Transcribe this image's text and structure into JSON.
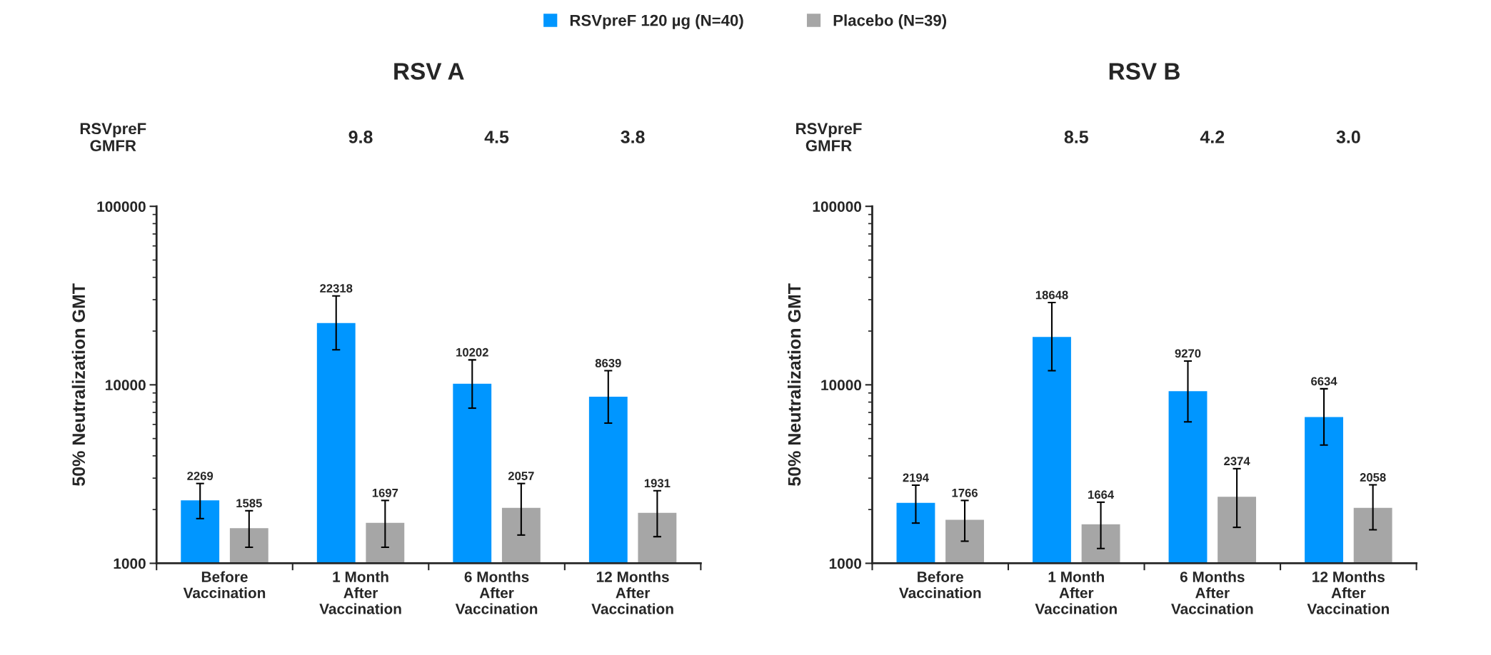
{
  "chart_data": [
    {
      "type": "bar",
      "title": "RSV A",
      "ylabel": "50% Neutralization GMT",
      "log": true,
      "ylim": [
        1000,
        100000
      ],
      "yticks": [
        1000,
        10000,
        100000
      ],
      "grid": false,
      "legend": "top",
      "data_labels": true,
      "categories": [
        "Before\nVaccination",
        "1 Month\nAfter\nVaccination",
        "6 Months\nAfter\nVaccination",
        "12 Months\nAfter\nVaccination"
      ],
      "series": [
        {
          "name": "RSVpreF 120 µg (N=40)",
          "color": "#0096ff",
          "values": [
            2269,
            22318,
            10202,
            8639
          ],
          "errors": [
            [
              1780,
              2800
            ],
            [
              15700,
              31500
            ],
            [
              7400,
              13800
            ],
            [
              6100,
              12000
            ]
          ]
        },
        {
          "name": "Placebo (N=39)",
          "color": "#a6a6a6",
          "values": [
            1585,
            1697,
            2057,
            1931
          ],
          "errors": [
            [
              1230,
              1970
            ],
            [
              1230,
              2250
            ],
            [
              1440,
              2800
            ],
            [
              1410,
              2550
            ]
          ]
        }
      ],
      "annotations": [
        "RSVpreF\nGMFR",
        "9.8",
        "4.5",
        "3.8"
      ]
    },
    {
      "type": "bar",
      "title": "RSV B",
      "ylabel": "50% Neutralization GMT",
      "log": true,
      "ylim": [
        1000,
        100000
      ],
      "yticks": [
        1000,
        10000,
        100000
      ],
      "grid": false,
      "data_labels": true,
      "categories": [
        "Before\nVaccination",
        "1 Month\nAfter\nVaccination",
        "6 Months\nAfter\nVaccination",
        "12 Months\nAfter\nVaccination"
      ],
      "series": [
        {
          "color": "#0096ff",
          "values": [
            2194,
            18648,
            9270,
            6634
          ],
          "errors": [
            [
              1680,
              2740
            ],
            [
              12000,
              28900
            ],
            [
              6200,
              13600
            ],
            [
              4600,
              9500
            ]
          ]
        },
        {
          "color": "#a6a6a6",
          "values": [
            1766,
            1664,
            2374,
            2058
          ],
          "errors": [
            [
              1330,
              2250
            ],
            [
              1210,
              2200
            ],
            [
              1590,
              3390
            ],
            [
              1540,
              2750
            ]
          ]
        }
      ],
      "annotations": [
        "RSVpreF\nGMFR",
        "8.5",
        "4.2",
        "3.0"
      ]
    }
  ]
}
